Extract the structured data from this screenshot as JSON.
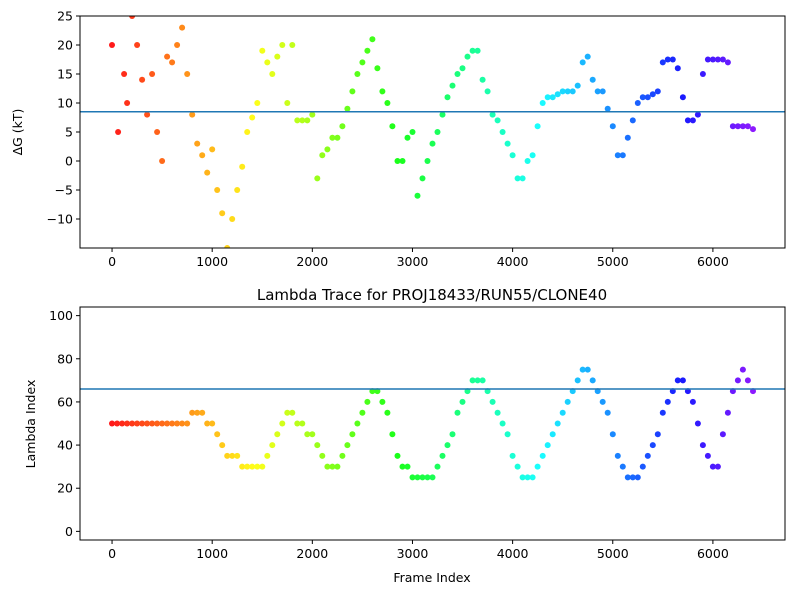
{
  "chart_data": [
    {
      "type": "scatter",
      "title": "",
      "xlabel": "",
      "ylabel": "ΔG (kT)",
      "xlim": [
        -320,
        6720
      ],
      "ylim": [
        -15,
        25
      ],
      "xticks": [
        0,
        1000,
        2000,
        3000,
        4000,
        5000,
        6000
      ],
      "yticks": [
        -10,
        -5,
        0,
        5,
        10,
        15,
        20,
        25
      ],
      "hline": 8.5,
      "hline_color": "#1f77b4",
      "colormap": "rainbow (red at frame 0 → violet at last frame)",
      "series": [
        {
          "x": [
            0,
            60,
            120,
            150,
            200,
            250,
            300,
            350,
            400,
            450,
            500,
            550,
            600,
            650,
            700,
            750,
            800,
            850,
            900,
            950,
            1000,
            1050,
            1100,
            1150,
            1200,
            1250,
            1300,
            1350,
            1400,
            1450,
            1500,
            1550,
            1600,
            1650,
            1700,
            1750,
            1800,
            1850,
            1900,
            1950,
            2000,
            2050,
            2100,
            2150,
            2200,
            2250,
            2300,
            2350,
            2400,
            2450,
            2500,
            2550,
            2600,
            2650,
            2700,
            2750,
            2800,
            2850,
            2900,
            2950,
            3000,
            3050,
            3100,
            3150,
            3200,
            3250,
            3300,
            3350,
            3400,
            3450,
            3500,
            3550,
            3600,
            3650,
            3700,
            3750,
            3800,
            3850,
            3900,
            3950,
            4000,
            4050,
            4100,
            4150,
            4200,
            4250,
            4300,
            4350,
            4400,
            4450,
            4500,
            4550,
            4600,
            4650,
            4700,
            4750,
            4800,
            4850,
            4900,
            4950,
            5000,
            5050,
            5100,
            5150,
            5200,
            5250,
            5300,
            5350,
            5400,
            5450,
            5500,
            5550,
            5600,
            5650,
            5700,
            5750,
            5800,
            5850,
            5900,
            5950,
            6000,
            6050,
            6100,
            6150,
            6200,
            6250,
            6300,
            6350,
            6400
          ],
          "y": [
            20,
            5,
            15,
            10,
            25,
            20,
            14,
            8,
            15,
            5,
            0,
            18,
            17,
            20,
            23,
            15,
            8,
            3,
            1,
            -2,
            2,
            -5,
            -9,
            -15,
            -10,
            -5,
            -1,
            5,
            7.5,
            10,
            19,
            17,
            15,
            18,
            20,
            10,
            20,
            7,
            7,
            7,
            8,
            -3,
            1,
            2,
            4,
            4,
            6,
            9,
            12,
            15,
            17,
            19,
            21,
            16,
            12,
            10,
            6,
            0,
            0,
            4,
            5,
            -6,
            -3,
            0,
            3,
            5,
            8,
            11,
            13,
            15,
            16,
            18,
            19,
            19,
            14,
            12,
            8,
            7,
            5,
            3,
            1,
            -3,
            -3,
            0,
            1,
            6,
            10,
            11,
            11,
            11.5,
            12,
            12,
            12,
            13,
            17,
            18,
            14,
            12,
            12,
            9,
            6,
            1,
            1,
            4,
            7,
            10,
            11,
            11,
            11.5,
            12,
            17,
            17.5,
            17.5,
            16,
            11,
            7,
            7,
            8,
            15,
            17.5,
            17.5,
            17.5,
            17.5,
            17,
            6,
            6,
            6,
            6,
            5.5
          ]
        }
      ]
    },
    {
      "type": "scatter",
      "title": "Lambda Trace for PROJ18433/RUN55/CLONE40",
      "xlabel": "Frame Index",
      "ylabel": "Lambda Index",
      "xlim": [
        -320,
        6720
      ],
      "ylim": [
        -4,
        104
      ],
      "xticks": [
        0,
        1000,
        2000,
        3000,
        4000,
        5000,
        6000
      ],
      "yticks": [
        0,
        20,
        40,
        60,
        80,
        100
      ],
      "hline": 66,
      "hline_color": "#1f77b4",
      "colormap": "rainbow (red at frame 0 → violet at last frame)",
      "series": [
        {
          "x": [
            0,
            50,
            100,
            150,
            200,
            250,
            300,
            350,
            400,
            450,
            500,
            550,
            600,
            650,
            700,
            750,
            800,
            850,
            900,
            950,
            1000,
            1050,
            1100,
            1150,
            1200,
            1250,
            1300,
            1350,
            1400,
            1450,
            1500,
            1550,
            1600,
            1650,
            1700,
            1750,
            1800,
            1850,
            1900,
            1950,
            2000,
            2050,
            2100,
            2150,
            2200,
            2250,
            2300,
            2350,
            2400,
            2450,
            2500,
            2550,
            2600,
            2650,
            2700,
            2750,
            2800,
            2850,
            2900,
            2950,
            3000,
            3050,
            3100,
            3150,
            3200,
            3250,
            3300,
            3350,
            3400,
            3450,
            3500,
            3550,
            3600,
            3650,
            3700,
            3750,
            3800,
            3850,
            3900,
            3950,
            4000,
            4050,
            4100,
            4150,
            4200,
            4250,
            4300,
            4350,
            4400,
            4450,
            4500,
            4550,
            4600,
            4650,
            4700,
            4750,
            4800,
            4850,
            4900,
            4950,
            5000,
            5050,
            5100,
            5150,
            5200,
            5250,
            5300,
            5350,
            5400,
            5450,
            5500,
            5550,
            5600,
            5650,
            5700,
            5750,
            5800,
            5850,
            5900,
            5950,
            6000,
            6050,
            6100,
            6150,
            6200,
            6250,
            6300,
            6350,
            6400
          ],
          "y": [
            50,
            50,
            50,
            50,
            50,
            50,
            50,
            50,
            50,
            50,
            50,
            50,
            50,
            50,
            50,
            50,
            55,
            55,
            55,
            50,
            50,
            45,
            40,
            35,
            35,
            35,
            30,
            30,
            30,
            30,
            30,
            35,
            40,
            45,
            50,
            55,
            55,
            50,
            50,
            45,
            45,
            40,
            35,
            30,
            30,
            30,
            35,
            40,
            45,
            50,
            55,
            60,
            65,
            65,
            60,
            55,
            45,
            35,
            30,
            30,
            25,
            25,
            25,
            25,
            25,
            30,
            35,
            40,
            45,
            55,
            60,
            65,
            70,
            70,
            70,
            65,
            60,
            55,
            50,
            45,
            35,
            30,
            25,
            25,
            25,
            30,
            35,
            40,
            45,
            50,
            55,
            60,
            65,
            70,
            75,
            75,
            70,
            65,
            60,
            55,
            45,
            35,
            30,
            25,
            25,
            25,
            30,
            35,
            40,
            45,
            55,
            60,
            65,
            70,
            70,
            65,
            60,
            50,
            40,
            35,
            30,
            30,
            45,
            55,
            65,
            70,
            75,
            70,
            65
          ]
        }
      ]
    }
  ]
}
